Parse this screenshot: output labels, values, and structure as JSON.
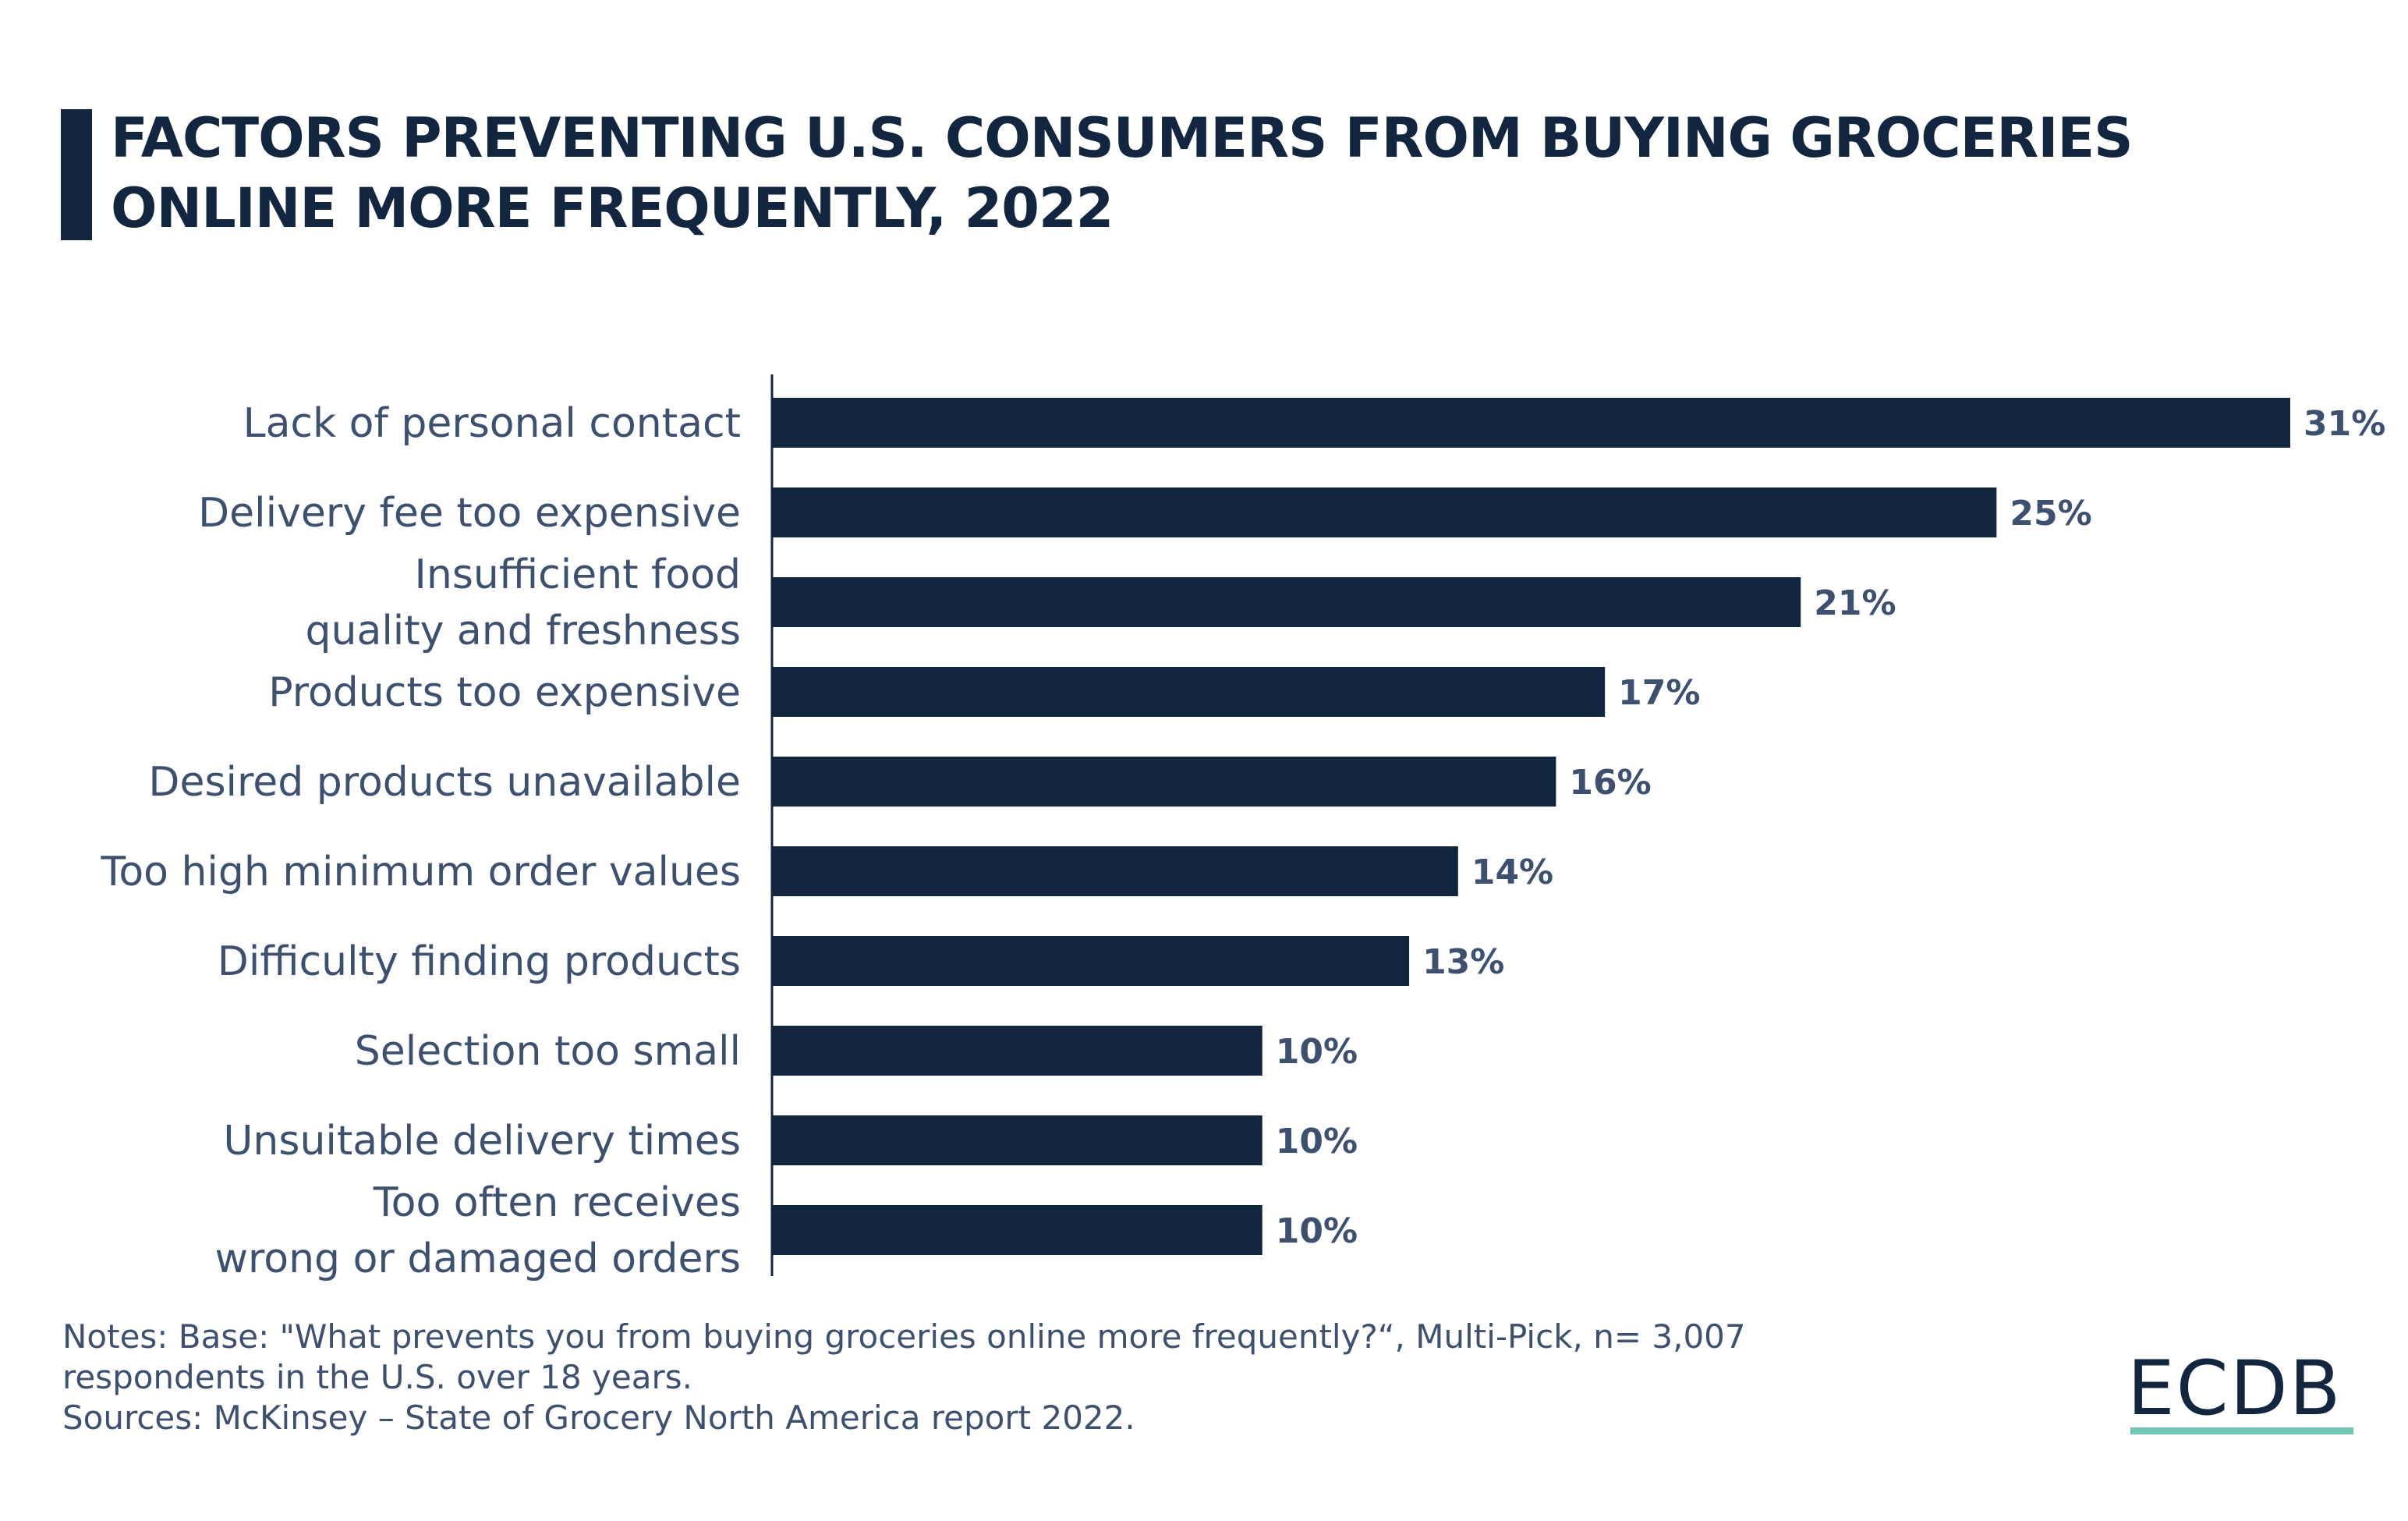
{
  "title": "FACTORS PREVENTING U.S. CONSUMERS FROM BUYING GROCERIES ONLINE MORE FREQUENTLY, 2022",
  "chart_data": {
    "type": "bar",
    "orientation": "horizontal",
    "title": "FACTORS PREVENTING U.S. CONSUMERS FROM BUYING GROCERIES ONLINE MORE FREQUENTLY, 2022",
    "categories": [
      [
        "Lack of personal contact"
      ],
      [
        "Delivery fee too expensive"
      ],
      [
        "Insufficient food",
        "quality and freshness"
      ],
      [
        "Products too expensive"
      ],
      [
        "Desired products unavailable"
      ],
      [
        "Too high minimum order values"
      ],
      [
        "Difficulty finding products"
      ],
      [
        "Selection too small"
      ],
      [
        "Unsuitable delivery times"
      ],
      [
        "Too often receives",
        "wrong or damaged orders"
      ]
    ],
    "values": [
      31,
      25,
      21,
      17,
      16,
      14,
      13,
      10,
      10,
      10
    ],
    "value_labels": [
      "31%",
      "25%",
      "21%",
      "17%",
      "16%",
      "14%",
      "13%",
      "10%",
      "10%",
      "10%"
    ],
    "unit": "%",
    "xlim": [
      0,
      31
    ],
    "grid": false,
    "bar_color": "#12263f",
    "label_color": "#3e5070"
  },
  "notes": {
    "line1": "Notes: Base: \"What prevents you from buying groceries online more frequently?“, Multi-Pick, n= 3,007",
    "line2": "respondents in the U.S. over 18 years.",
    "sources": "Sources: McKinsey – State of Grocery North America report 2022."
  },
  "logo": {
    "text": "ECDB",
    "accent": "#74c6b4"
  }
}
